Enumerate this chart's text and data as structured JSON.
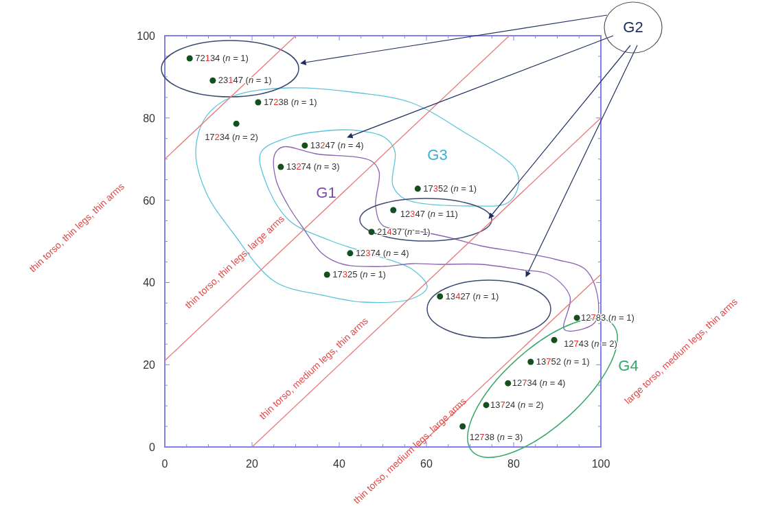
{
  "chart_data": {
    "type": "scatter",
    "xlim": [
      0,
      100
    ],
    "ylim": [
      0,
      100
    ],
    "xticks": [
      0,
      {
        "value": 5,
        "label": null
      },
      {
        "value": 10,
        "label": null
      },
      {
        "value": 15,
        "label": null
      },
      20,
      {
        "value": 25,
        "label": null
      },
      {
        "value": 30,
        "label": null
      },
      {
        "value": 35,
        "label": null
      },
      40,
      {
        "value": 45,
        "label": null
      },
      {
        "value": 50,
        "label": null
      },
      {
        "value": 55,
        "label": null
      },
      60,
      {
        "value": 65,
        "label": null
      },
      {
        "value": 70,
        "label": null
      },
      {
        "value": 75,
        "label": null
      },
      80,
      {
        "value": 85,
        "label": null
      },
      {
        "value": 90,
        "label": null
      },
      {
        "value": 95,
        "label": null
      },
      100
    ],
    "yticks": [
      0,
      {
        "value": 5,
        "label": null
      },
      {
        "value": 10,
        "label": null
      },
      {
        "value": 15,
        "label": null
      },
      20,
      {
        "value": 25,
        "label": null
      },
      {
        "value": 30,
        "label": null
      },
      {
        "value": 35,
        "label": null
      },
      40,
      {
        "value": 45,
        "label": null
      },
      {
        "value": 50,
        "label": null
      },
      {
        "value": 55,
        "label": null
      },
      60,
      {
        "value": 65,
        "label": null
      },
      {
        "value": 70,
        "label": null
      },
      {
        "value": 75,
        "label": null
      },
      80,
      {
        "value": 85,
        "label": null
      },
      {
        "value": 90,
        "label": null
      },
      {
        "value": 95,
        "label": null
      },
      100
    ],
    "grid": false,
    "marker": "circle",
    "series": [
      {
        "color": "#14501e",
        "x": [
          5.7,
          11,
          21.4,
          16.4,
          32.1,
          26.6,
          58,
          52.4,
          47.4,
          42.5,
          37.2,
          63.1,
          94.5,
          89.3,
          83.9,
          78.7,
          73.7,
          68.3
        ],
        "values": [
          94.5,
          89.1,
          83.8,
          78.6,
          73.3,
          68.1,
          62.8,
          57.6,
          52.3,
          47.1,
          41.9,
          36.6,
          31.4,
          26,
          20.7,
          15.5,
          10.2,
          5
        ]
      },
      {
        "type": "line",
        "color": "#e87a7a",
        "line_style": "solid",
        "marker": "none",
        "x": [
          0,
          30
        ],
        "values": [
          70,
          100
        ]
      },
      {
        "type": "line",
        "color": "#e87a7a",
        "line_style": "solid",
        "marker": "none",
        "x": [
          0,
          79
        ],
        "values": [
          21,
          100
        ]
      },
      {
        "type": "line",
        "color": "#e87a7a",
        "line_style": "solid",
        "marker": "none",
        "x": [
          20,
          100
        ],
        "values": [
          0,
          80
        ]
      },
      {
        "type": "line",
        "color": "#e87a7a",
        "line_style": "solid",
        "marker": "none",
        "x": [
          58,
          100
        ],
        "values": [
          0,
          42
        ]
      }
    ],
    "annotations": [
      {
        "text": "72134 (n = 1)",
        "x": 5.7,
        "y": 94.5
      },
      {
        "text": "23147 (n = 1)",
        "x": 11,
        "y": 89.1
      },
      {
        "text": "17238 (n = 1)",
        "x": 21.4,
        "y": 83.8
      },
      {
        "text": "17234 (n = 2)",
        "x": 16.4,
        "y": 78.6
      },
      {
        "text": "13247 (n = 4)",
        "x": 32.1,
        "y": 73.3
      },
      {
        "text": "13274 (n = 3)",
        "x": 26.6,
        "y": 68.1
      },
      {
        "text": "17352 (n = 1)",
        "x": 58,
        "y": 62.8
      },
      {
        "text": "12347 (n = 11)",
        "x": 52.4,
        "y": 57.6
      },
      {
        "text": "21437 (n = 1)",
        "x": 47.4,
        "y": 52.3
      },
      {
        "text": "12374 (n = 4)",
        "x": 42.5,
        "y": 47.1
      },
      {
        "text": "17325 (n = 1)",
        "x": 37.2,
        "y": 41.9
      },
      {
        "text": "13427 (n = 1)",
        "x": 63.1,
        "y": 36.6
      },
      {
        "text": "12783 (n = 1)",
        "x": 94.5,
        "y": 31.4
      },
      {
        "text": "12743 (n = 2)",
        "x": 89.3,
        "y": 26
      },
      {
        "text": "13752 (n = 1)",
        "x": 83.9,
        "y": 20.7
      },
      {
        "text": "12734 (n = 4)",
        "x": 78.7,
        "y": 15.5
      },
      {
        "text": "13724 (n = 2)",
        "x": 73.7,
        "y": 10.2
      },
      {
        "text": "12738 (n = 3)",
        "x": 68.3,
        "y": 5
      },
      "G1",
      "G2",
      "G3",
      "G4",
      "thin torso, thin legs, thin arms",
      "thin torso, thin legs, large arms",
      "thin torso, medium legs, thin arms",
      "thin torso, medium legs, large arms",
      "large torso, medium legs, thin arms"
    ]
  }
}
